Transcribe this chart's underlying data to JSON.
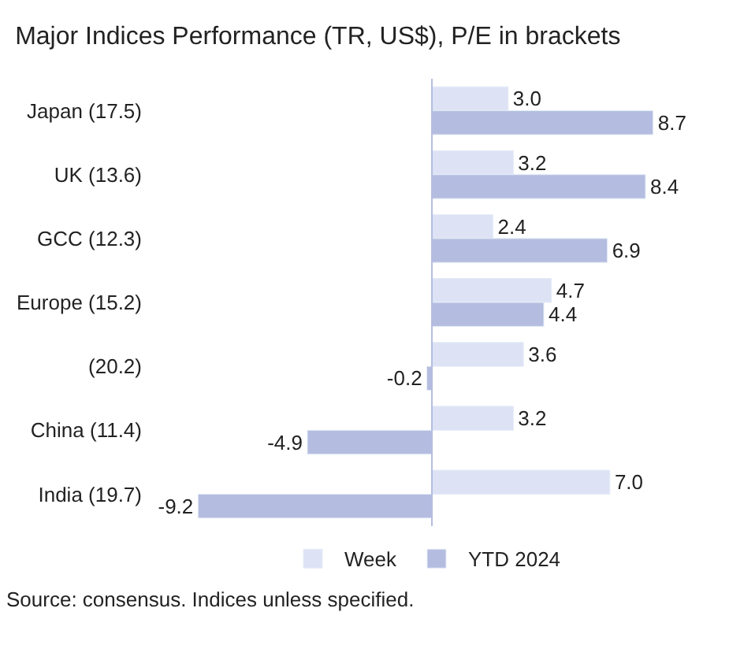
{
  "chart_data": {
    "type": "bar",
    "orientation": "horizontal",
    "title": "Major Indices Performance (TR, US$), P/E in brackets",
    "categories": [
      "Japan (17.5)",
      "UK (13.6)",
      "GCC (12.3)",
      "Europe (15.2)",
      "(20.2)",
      "China (11.4)",
      "India (19.7)"
    ],
    "series": [
      {
        "name": "Week",
        "color": "#dde3f5",
        "values": [
          3.0,
          3.2,
          2.4,
          4.7,
          3.6,
          3.2,
          7.0
        ],
        "value_labels": [
          "3.0",
          "3.2",
          "2.4",
          "4.7",
          "3.6",
          "3.2",
          "7.0"
        ]
      },
      {
        "name": "YTD 2024",
        "color": "#b4bde0",
        "values": [
          8.7,
          8.4,
          6.9,
          4.4,
          -0.2,
          -4.9,
          -9.2
        ],
        "value_labels": [
          "8.7",
          "8.4",
          "6.9",
          "4.4",
          "-0.2",
          "-4.9",
          "-9.2"
        ]
      }
    ],
    "ref_lines": [
      {
        "axis": "x",
        "value": 0,
        "color": "#b4bde0"
      }
    ],
    "legend": "bottom",
    "annotations": [
      "Source: consensus. Indices unless specified."
    ]
  }
}
